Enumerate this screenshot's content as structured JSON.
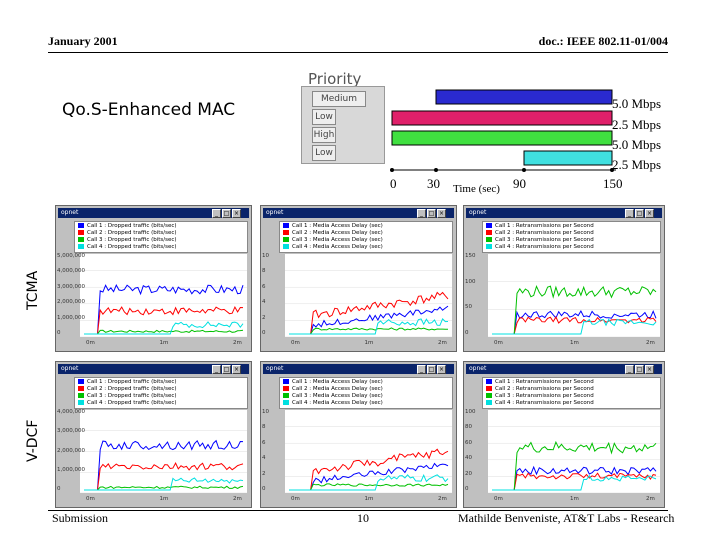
{
  "header": {
    "left": "January 2001",
    "right": "doc.: IEEE 802.11-01/004"
  },
  "title": "Qo.S-Enhanced MAC",
  "priority": {
    "label": "Priority",
    "badges": [
      "Medium",
      "Low",
      "High",
      "Low"
    ],
    "rates": [
      "5.0 Mbps",
      "2.5 Mbps",
      "5.0 Mbps",
      "2.5 Mbps"
    ],
    "bar_colors": [
      "#2a2ad0",
      "#e0206a",
      "#40e040",
      "#40e0e0"
    ],
    "bars": [
      {
        "start": 30,
        "end": 150
      },
      {
        "start": 0,
        "end": 150
      },
      {
        "start": 0,
        "end": 150
      },
      {
        "start": 90,
        "end": 150
      }
    ],
    "axis_ticks": [
      "0",
      "30",
      "90",
      "150"
    ],
    "axis_label": "Time (sec)"
  },
  "rows": {
    "tcma": "TCMA",
    "vdcf": "V-DCF"
  },
  "series_colors": {
    "call1": "#0000ff",
    "call2": "#ff0000",
    "call3": "#00c000",
    "call4": "#00e0e0"
  },
  "panels": [
    {
      "title": "opnet",
      "legend": [
        "Call 1 : Dropped traffic (bits/sec)",
        "Call 2 : Dropped traffic (bits/sec)",
        "Call 3 : Dropped traffic (bits/sec)",
        "Call 4 : Dropped traffic (bits/sec)"
      ],
      "yticks": [
        "5,000,000",
        "4,000,000",
        "3,000,000",
        "2,000,000",
        "1,000,000",
        "0"
      ],
      "xticks": [
        "0m",
        "1m",
        "2m"
      ]
    },
    {
      "title": "opnet",
      "legend": [
        "Call 1 : Media Access Delay (sec)",
        "Call 2 : Media Access Delay (sec)",
        "Call 3 : Media Access Delay (sec)",
        "Call 4 : Media Access Delay (sec)"
      ],
      "yticks": [
        "10",
        "8",
        "6",
        "4",
        "2",
        "0"
      ],
      "xticks": [
        "0m",
        "1m",
        "2m"
      ]
    },
    {
      "title": "opnet",
      "legend": [
        "Call 1 : Retransmissions per Second",
        "Call 2 : Retransmissions per Second",
        "Call 3 : Retransmissions per Second",
        "Call 4 : Retransmissions per Second"
      ],
      "yticks": [
        "150",
        "100",
        "50",
        "0"
      ],
      "xticks": [
        "0m",
        "1m",
        "2m"
      ]
    },
    {
      "title": "opnet",
      "legend": [
        "Call 1 : Dropped traffic (bits/sec)",
        "Call 2 : Dropped traffic (bits/sec)",
        "Call 3 : Dropped traffic (bits/sec)",
        "Call 4 : Dropped traffic (bits/sec)"
      ],
      "yticks": [
        "4,000,000",
        "3,000,000",
        "2,000,000",
        "1,000,000",
        "0"
      ],
      "xticks": [
        "0m",
        "1m",
        "2m"
      ]
    },
    {
      "title": "opnet",
      "legend": [
        "Call 1 : Media Access Delay (sec)",
        "Call 2 : Media Access Delay (sec)",
        "Call 3 : Media Access Delay (sec)",
        "Call 4 : Media Access Delay (sec)"
      ],
      "yticks": [
        "10",
        "8",
        "6",
        "4",
        "2",
        "0"
      ],
      "xticks": [
        "0m",
        "1m",
        "2m"
      ]
    },
    {
      "title": "opnet",
      "legend": [
        "Call 1 : Retransmissions per Second",
        "Call 2 : Retransmissions per Second",
        "Call 3 : Retransmissions per Second",
        "Call 4 : Retransmissions per Second"
      ],
      "yticks": [
        "100",
        "80",
        "60",
        "40",
        "20",
        "0"
      ],
      "xticks": [
        "0m",
        "1m",
        "2m"
      ]
    }
  ],
  "footer": {
    "left": "Submission",
    "center": "10",
    "right": "Mathilde Benveniste, AT&T Labs - Research"
  }
}
